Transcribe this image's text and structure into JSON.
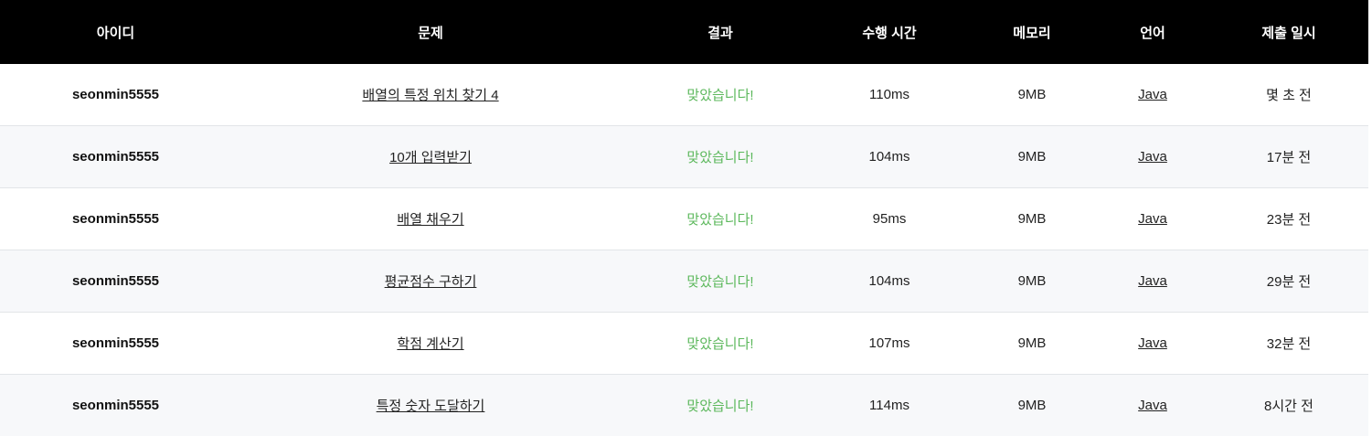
{
  "headers": {
    "user_id": "아이디",
    "problem": "문제",
    "result": "결과",
    "time": "수행 시간",
    "memory": "메모리",
    "language": "언어",
    "submitted": "제출 일시"
  },
  "colors": {
    "header_bg": "#000000",
    "header_text": "#ffffff",
    "result_ok": "#5cb85c",
    "row_alt": "#f7f8fa"
  },
  "rows": [
    {
      "user_id": "seonmin5555",
      "problem": "배열의 특정 위치 찾기 4",
      "result": "맞았습니다!",
      "time": "110ms",
      "memory": "9MB",
      "language": "Java",
      "submitted": "몇 초 전"
    },
    {
      "user_id": "seonmin5555",
      "problem": "10개 입력받기",
      "result": "맞았습니다!",
      "time": "104ms",
      "memory": "9MB",
      "language": "Java",
      "submitted": "17분 전"
    },
    {
      "user_id": "seonmin5555",
      "problem": "배열 채우기",
      "result": "맞았습니다!",
      "time": "95ms",
      "memory": "9MB",
      "language": "Java",
      "submitted": "23분 전"
    },
    {
      "user_id": "seonmin5555",
      "problem": "평균점수 구하기",
      "result": "맞았습니다!",
      "time": "104ms",
      "memory": "9MB",
      "language": "Java",
      "submitted": "29분 전"
    },
    {
      "user_id": "seonmin5555",
      "problem": "학점 계산기",
      "result": "맞았습니다!",
      "time": "107ms",
      "memory": "9MB",
      "language": "Java",
      "submitted": "32분 전"
    },
    {
      "user_id": "seonmin5555",
      "problem": "특정 숫자 도달하기",
      "result": "맞았습니다!",
      "time": "114ms",
      "memory": "9MB",
      "language": "Java",
      "submitted": "8시간 전"
    }
  ]
}
